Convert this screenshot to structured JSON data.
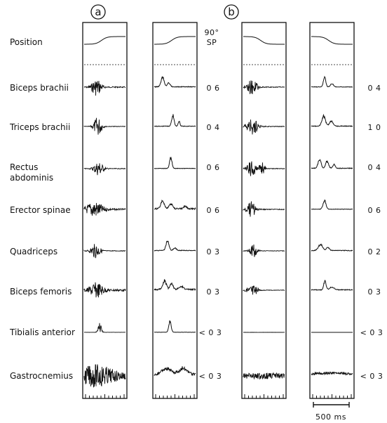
{
  "panels": [
    {
      "id": "a",
      "label": "a"
    },
    {
      "id": "b",
      "label": "b"
    }
  ],
  "rows": [
    {
      "label": "Position",
      "value_a": "90°",
      "value_a_sub": "SP",
      "value_b": ""
    },
    {
      "label": "Biceps brachii",
      "value_a": "0 6",
      "value_b": "0 4"
    },
    {
      "label": "Triceps brachii",
      "value_a": "0 4",
      "value_b": "1 0"
    },
    {
      "label_lines": [
        "Rectus",
        "abdominis"
      ],
      "value_a": "0 6",
      "value_b": "0 4"
    },
    {
      "label": "Erector spinae",
      "value_a": "0 6",
      "value_b": "0 6"
    },
    {
      "label": "Quadriceps",
      "value_a": "0 3",
      "value_b": "0 2"
    },
    {
      "label": "Biceps femoris",
      "value_a": "0 3",
      "value_b": "0 3"
    },
    {
      "label": "Tibialis anterior",
      "value_a": "< 0 3",
      "value_b": "< 0 3"
    },
    {
      "label": "Gastrocnemius",
      "value_a": "< 0 3",
      "value_b": "< 0 3"
    }
  ],
  "scale_bar": {
    "label": "500 ms"
  }
}
